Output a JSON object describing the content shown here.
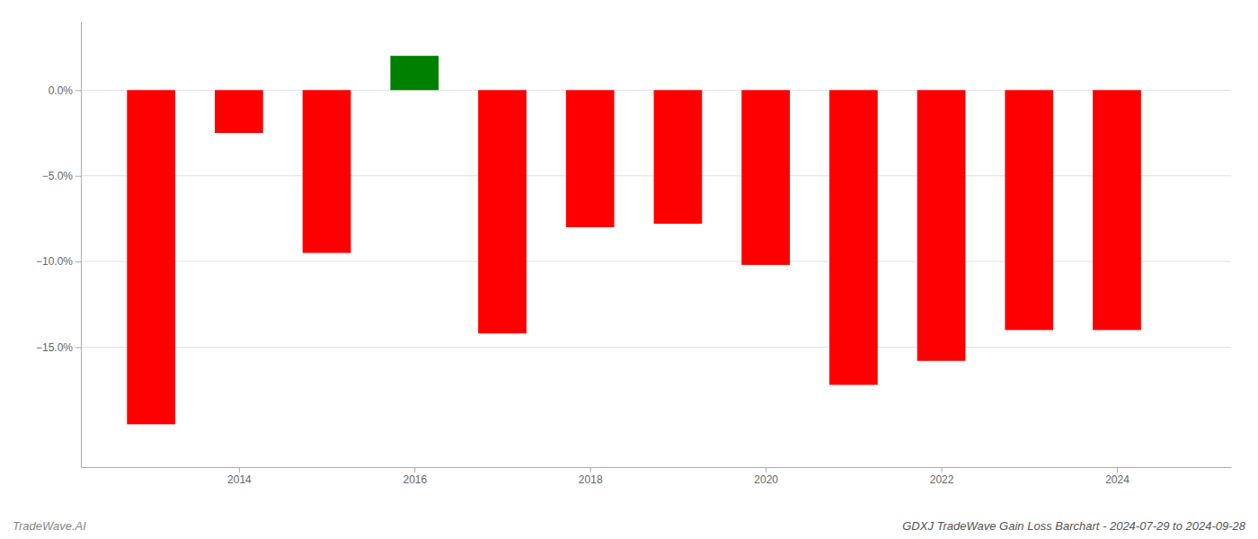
{
  "chart_data": {
    "type": "bar",
    "title": "GDXJ TradeWave Gain Loss Barchart - 2024-07-29 to 2024-09-28",
    "annotations": [
      "TradeWave.AI"
    ],
    "x": [
      2013,
      2014,
      2015,
      2016,
      2017,
      2018,
      2019,
      2020,
      2021,
      2022,
      2023,
      2024
    ],
    "values": [
      -19.5,
      -2.5,
      -9.5,
      2.0,
      -14.2,
      -8.0,
      -7.8,
      -10.2,
      -17.2,
      -15.8,
      -14.0,
      -14.0
    ],
    "colors": [
      "#ff0000",
      "#ff0000",
      "#ff0000",
      "#008000",
      "#ff0000",
      "#ff0000",
      "#ff0000",
      "#ff0000",
      "#ff0000",
      "#ff0000",
      "#ff0000",
      "#ff0000"
    ],
    "xlim": [
      2012.2,
      2025.3
    ],
    "xticks": [
      2014,
      2016,
      2018,
      2020,
      2022,
      2024
    ],
    "ylim": [
      -22,
      4.0
    ],
    "yticks": [
      {
        "value": 0.0,
        "label": "0.0%"
      },
      {
        "value": -5.0,
        "label": "−5.0%"
      },
      {
        "value": -10.0,
        "label": "−10.0%"
      },
      {
        "value": -15.0,
        "label": "−15.0%"
      }
    ],
    "grid": true
  }
}
